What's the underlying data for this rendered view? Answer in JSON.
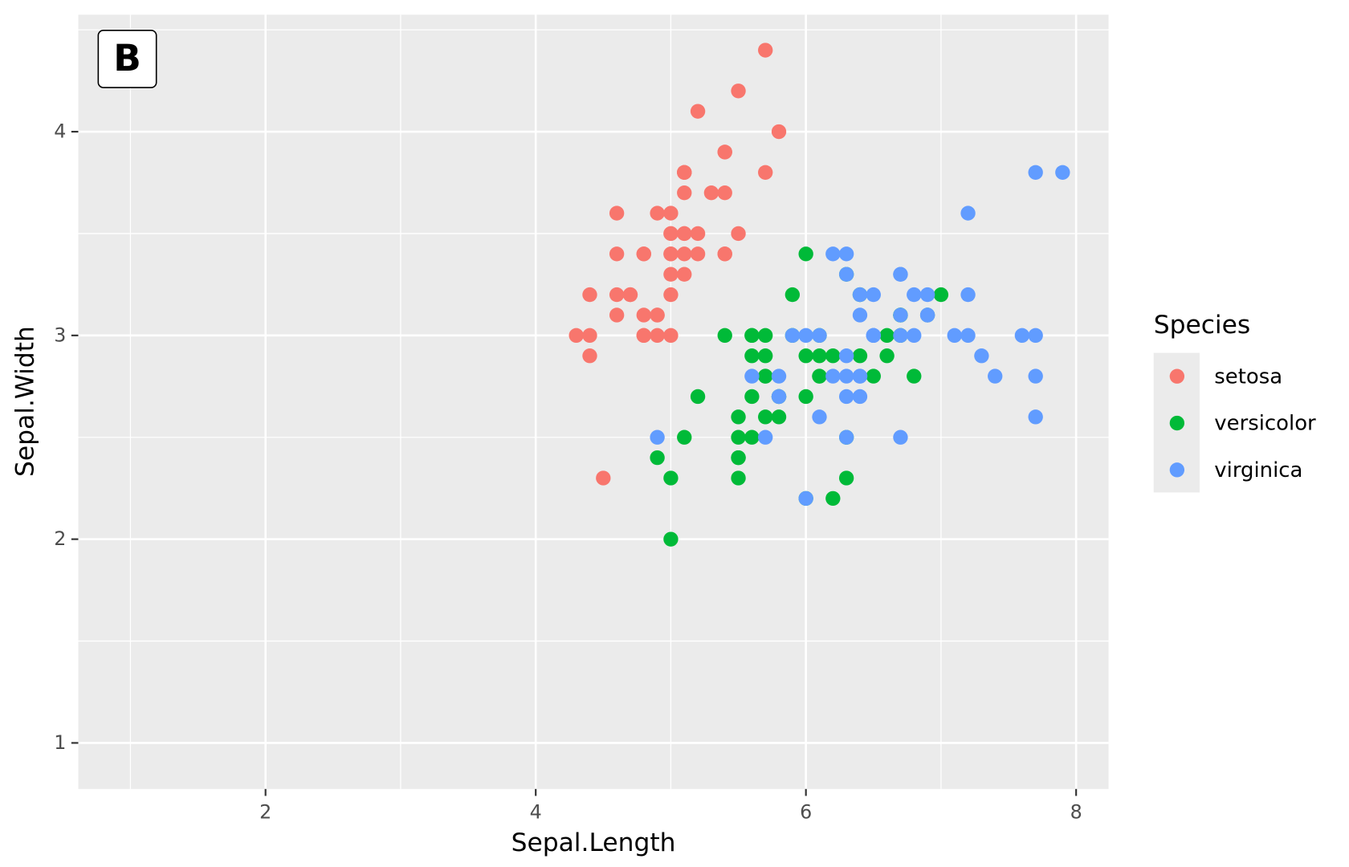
{
  "chart_data": {
    "type": "scatter",
    "tag": "B",
    "x_label": "Sepal.Length",
    "y_label": "Sepal.Width",
    "legend_title": "Species",
    "legend_position": "right",
    "xlim": [
      0.614,
      8.24
    ],
    "ylim": [
      0.774,
      4.574
    ],
    "xticks": [
      2,
      4,
      6,
      8
    ],
    "yticks": [
      1,
      2,
      3,
      4
    ],
    "xminor": [
      1,
      3,
      5,
      7
    ],
    "yminor": [
      1.5,
      2.5,
      3.5,
      4.5
    ],
    "grid": true,
    "series": [
      {
        "name": "setosa",
        "color": "#F8766D",
        "x": [
          5.1,
          4.9,
          4.7,
          4.6,
          5.0,
          5.4,
          4.6,
          5.0,
          4.4,
          4.9,
          5.4,
          4.8,
          4.8,
          4.3,
          5.8,
          5.7,
          5.4,
          5.1,
          5.7,
          5.1,
          5.4,
          5.1,
          4.6,
          5.1,
          4.8,
          5.0,
          5.0,
          5.2,
          5.2,
          4.7,
          4.8,
          5.4,
          5.2,
          5.5,
          4.9,
          5.0,
          5.5,
          4.9,
          4.4,
          5.1,
          5.0,
          4.5,
          4.4,
          5.0,
          5.1,
          4.8,
          5.1,
          4.6,
          5.3,
          5.0
        ],
        "y": [
          3.5,
          3.0,
          3.2,
          3.1,
          3.6,
          3.9,
          3.4,
          3.4,
          2.9,
          3.1,
          3.7,
          3.4,
          3.0,
          3.0,
          4.0,
          4.4,
          3.9,
          3.5,
          3.8,
          3.8,
          3.4,
          3.7,
          3.6,
          3.3,
          3.4,
          3.0,
          3.4,
          3.5,
          3.4,
          3.2,
          3.1,
          3.4,
          4.1,
          4.2,
          3.1,
          3.2,
          3.5,
          3.6,
          3.0,
          3.4,
          3.5,
          2.3,
          3.2,
          3.5,
          3.8,
          3.0,
          3.8,
          3.2,
          3.7,
          3.3
        ]
      },
      {
        "name": "versicolor",
        "color": "#00BA38",
        "x": [
          7.0,
          6.4,
          6.9,
          5.5,
          6.5,
          5.7,
          6.3,
          4.9,
          6.6,
          5.2,
          5.0,
          5.9,
          6.0,
          6.1,
          5.6,
          6.7,
          5.6,
          5.8,
          6.2,
          5.6,
          5.9,
          6.1,
          6.3,
          6.1,
          6.4,
          6.6,
          6.8,
          6.7,
          6.0,
          5.7,
          5.5,
          5.5,
          5.8,
          6.0,
          5.4,
          6.0,
          6.7,
          6.3,
          5.6,
          5.5,
          5.5,
          6.1,
          5.8,
          5.0,
          5.6,
          5.7,
          5.7,
          6.2,
          5.1,
          5.7
        ],
        "y": [
          3.2,
          3.2,
          3.1,
          2.3,
          2.8,
          2.8,
          3.3,
          2.4,
          2.9,
          2.7,
          2.0,
          3.0,
          2.2,
          2.9,
          2.9,
          3.1,
          3.0,
          2.7,
          2.2,
          2.5,
          3.2,
          2.8,
          2.5,
          2.8,
          2.9,
          3.0,
          2.8,
          3.0,
          2.9,
          2.6,
          2.4,
          2.4,
          2.7,
          2.7,
          3.0,
          3.4,
          3.1,
          2.3,
          3.0,
          2.5,
          2.6,
          3.0,
          2.6,
          2.3,
          2.7,
          3.0,
          2.9,
          2.9,
          2.5,
          2.8
        ]
      },
      {
        "name": "virginica",
        "color": "#619CFF",
        "x": [
          6.3,
          5.8,
          7.1,
          6.3,
          6.5,
          7.6,
          4.9,
          7.3,
          6.7,
          7.2,
          6.5,
          6.4,
          6.8,
          5.7,
          5.8,
          6.4,
          6.5,
          7.7,
          7.7,
          6.0,
          6.9,
          5.6,
          7.7,
          6.3,
          6.7,
          7.2,
          6.2,
          6.1,
          6.4,
          7.2,
          7.4,
          7.9,
          6.4,
          6.3,
          6.1,
          7.7,
          6.3,
          6.4,
          6.0,
          6.9,
          6.7,
          6.9,
          5.8,
          6.8,
          6.7,
          6.7,
          6.3,
          6.5,
          6.2,
          5.9
        ],
        "y": [
          3.3,
          2.7,
          3.0,
          2.9,
          3.0,
          3.0,
          2.5,
          2.9,
          2.5,
          3.6,
          3.2,
          2.7,
          3.0,
          2.5,
          2.8,
          3.2,
          3.0,
          3.8,
          2.6,
          2.2,
          3.2,
          2.8,
          2.8,
          2.7,
          3.3,
          3.2,
          2.8,
          3.0,
          2.8,
          3.0,
          2.8,
          3.8,
          2.8,
          2.8,
          2.6,
          3.0,
          3.4,
          3.1,
          3.0,
          3.1,
          3.1,
          3.1,
          2.7,
          3.2,
          3.3,
          3.0,
          2.5,
          3.0,
          3.4,
          3.0
        ]
      }
    ]
  }
}
